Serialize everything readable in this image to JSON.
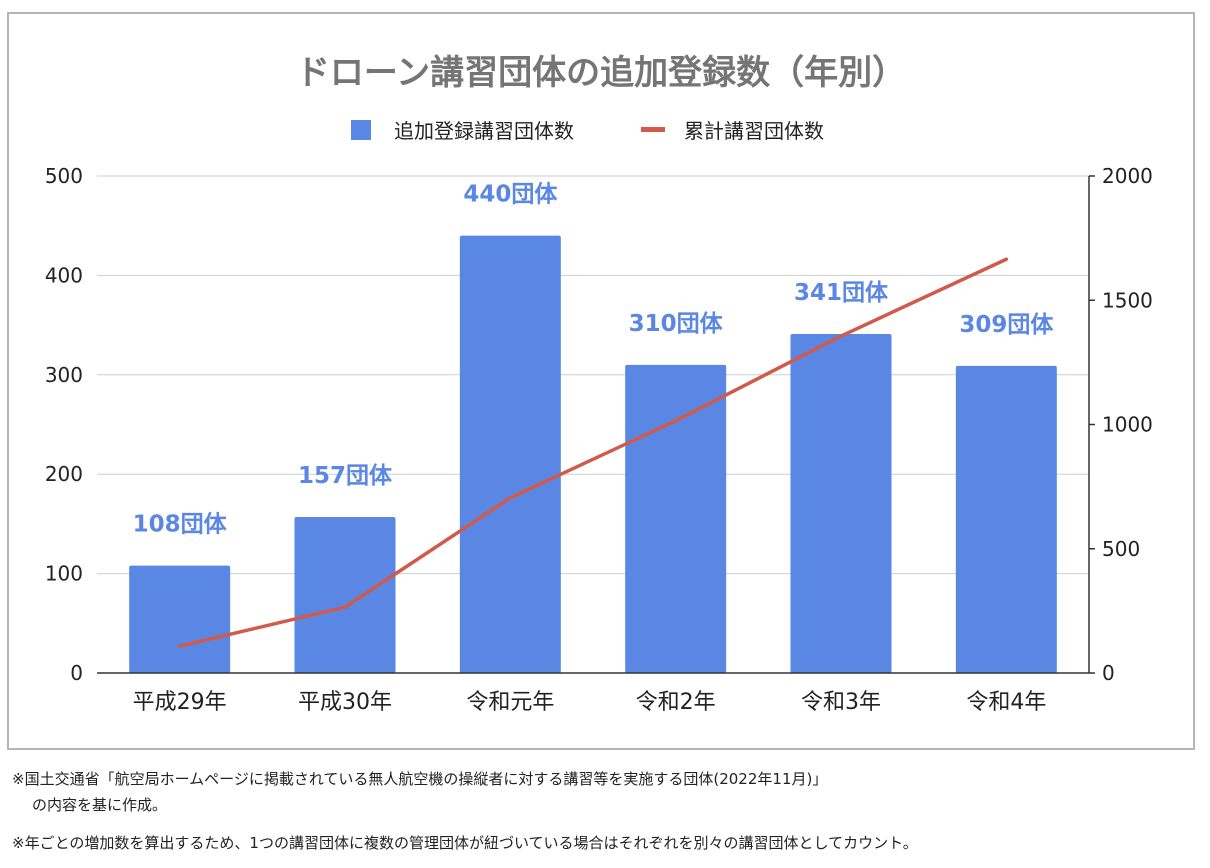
{
  "chart_data": {
    "type": "bar",
    "title": "ドローン講習団体の追加登録数（年別）",
    "categories": [
      "平成29年",
      "平成30年",
      "令和元年",
      "令和2年",
      "令和3年",
      "令和4年"
    ],
    "series": [
      {
        "name": "追加登録講習団体数",
        "type": "bar",
        "axis": "left",
        "values": [
          108,
          157,
          440,
          310,
          341,
          309
        ],
        "labels": [
          "108団体",
          "157団体",
          "440団体",
          "310団体",
          "341団体",
          "309団体"
        ],
        "color": "#5b87e4"
      },
      {
        "name": "累計講習団体数",
        "type": "line",
        "axis": "right",
        "values": [
          108,
          265,
          705,
          1015,
          1356,
          1665
        ],
        "color": "#d05a4b"
      }
    ],
    "ylim_left": [
      0,
      500
    ],
    "yticks_left": [
      "0",
      "100",
      "200",
      "300",
      "400",
      "500"
    ],
    "ylim_right": [
      0,
      2000
    ],
    "yticks_right": [
      "0",
      "500",
      "1000",
      "1500",
      "2000"
    ],
    "legend_position": "top",
    "grid": true,
    "label_color": "#5b87e4"
  },
  "notes": {
    "line1": "※国土交通省「航空局ホームページに掲載されている無人航空機の操縦者に対する講習等を実施する団体(2022年11月)」",
    "line2": "の内容を基に作成。",
    "line3": "※年ごとの増加数を算出するため、1つの講習団体に複数の管理団体が紐づいている場合はそれぞれを別々の講習団体としてカウント。"
  }
}
